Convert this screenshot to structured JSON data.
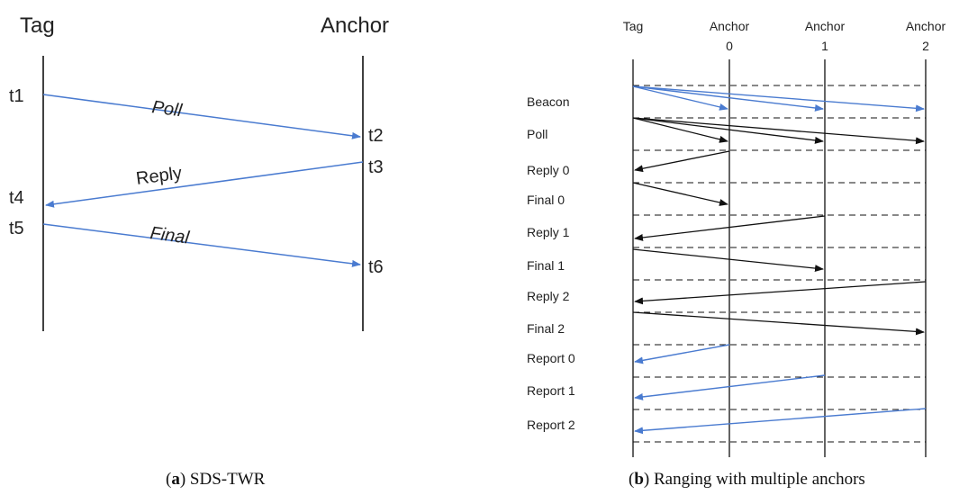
{
  "panel_a": {
    "tag_label": "Tag",
    "anchor_label": "Anchor",
    "time_labels": [
      "t1",
      "t2",
      "t3",
      "t4",
      "t5",
      "t6"
    ],
    "messages": [
      {
        "label": "Poll",
        "from": "Tag",
        "to": "Anchor",
        "color": "#4a7bd0"
      },
      {
        "label": "Reply",
        "from": "Anchor",
        "to": "Tag",
        "color": "#4a7bd0"
      },
      {
        "label": "Final",
        "from": "Tag",
        "to": "Anchor",
        "color": "#4a7bd0"
      }
    ],
    "caption_letter": "a",
    "caption_text": " SDS-TWR"
  },
  "panel_b": {
    "columns": [
      {
        "line1": "Tag",
        "line2": ""
      },
      {
        "line1": "Anchor",
        "line2": "0"
      },
      {
        "line1": "Anchor",
        "line2": "1"
      },
      {
        "line1": "Anchor",
        "line2": "2"
      }
    ],
    "phases": [
      {
        "label": "Beacon",
        "color": "#4a7bd0"
      },
      {
        "label": "Poll",
        "color": "#111111"
      },
      {
        "label": "Reply 0",
        "color": "#111111"
      },
      {
        "label": "Final 0",
        "color": "#111111"
      },
      {
        "label": "Reply 1",
        "color": "#111111"
      },
      {
        "label": "Final 1",
        "color": "#111111"
      },
      {
        "label": "Reply 2",
        "color": "#111111"
      },
      {
        "label": "Final 2",
        "color": "#111111"
      },
      {
        "label": "Report 0",
        "color": "#4a7bd0"
      },
      {
        "label": "Report 1",
        "color": "#4a7bd0"
      },
      {
        "label": "Report 2",
        "color": "#4a7bd0"
      }
    ],
    "caption_letter": "b",
    "caption_text": " Ranging with multiple anchors"
  },
  "colors": {
    "blue_arrow": "#4a7bd0",
    "black_arrow": "#111111",
    "lifeline": "#111111"
  }
}
